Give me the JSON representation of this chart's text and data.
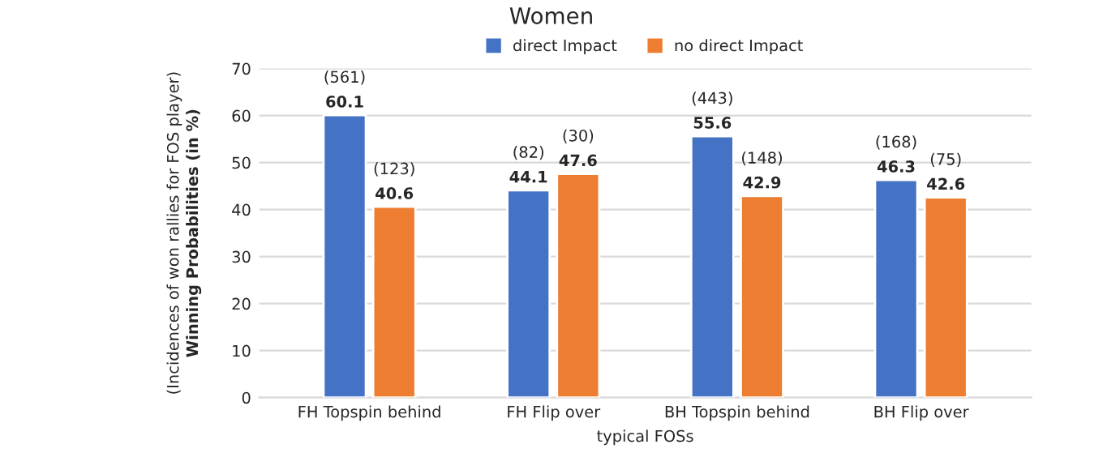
{
  "chart_data": {
    "type": "bar",
    "title": "Women",
    "xlabel": "typical FOSs",
    "ylabel": "(Incidences of won rallies for FOS player)\nWinning Probabilities (in %)",
    "categories": [
      "FH Topspin behind",
      "FH Flip over",
      "BH Topspin behind",
      "BH Flip over"
    ],
    "series": [
      {
        "name": "direct Impact",
        "color": "#4472c4",
        "values": [
          60.1,
          44.1,
          55.6,
          46.3
        ],
        "value_labels": [
          "(561)\n60.1",
          "(82)\n44.1",
          "(443)\n55.6",
          "(168)\n46.3"
        ]
      },
      {
        "name": "no direct Impact",
        "color": "#ed7d31",
        "values": [
          40.6,
          47.6,
          42.9,
          42.6
        ],
        "value_labels": [
          "(123)\n40.6",
          "(30)\n47.6",
          "(148)\n42.9",
          "(75)\n42.6"
        ]
      }
    ],
    "ylim": [
      0,
      70
    ],
    "yticks": [
      0,
      10,
      20,
      30,
      40,
      50,
      60,
      70
    ],
    "grid": "y",
    "legend": "top"
  }
}
